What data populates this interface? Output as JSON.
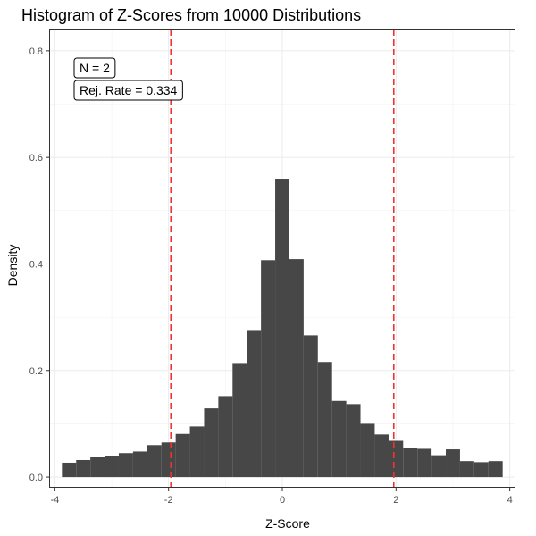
{
  "chart_data": {
    "type": "bar",
    "title": "Histogram of Z-Scores from 10000 Distributions",
    "xlabel": "Z-Score",
    "ylabel": "Density",
    "xlim": [
      -4.1,
      4.1
    ],
    "ylim": [
      -0.02,
      0.84
    ],
    "x_ticks": [
      -4,
      -2,
      0,
      2,
      4
    ],
    "x_tick_labels": [
      "-4",
      "-2",
      "0",
      "2",
      "4"
    ],
    "y_ticks": [
      0.0,
      0.2,
      0.4,
      0.6,
      0.8
    ],
    "y_tick_labels": [
      "0.0",
      "0.2",
      "0.4",
      "0.6",
      "0.8"
    ],
    "grid": true,
    "bin_width": 0.25,
    "bin_centers": [
      -3.75,
      -3.5,
      -3.25,
      -3.0,
      -2.75,
      -2.5,
      -2.25,
      -2.0,
      -1.75,
      -1.5,
      -1.25,
      -1.0,
      -0.75,
      -0.5,
      -0.25,
      0.0,
      0.25,
      0.5,
      0.75,
      1.0,
      1.25,
      1.5,
      1.75,
      2.0,
      2.25,
      2.5,
      2.75,
      3.0,
      3.25,
      3.5,
      3.75
    ],
    "values": [
      0.027,
      0.032,
      0.037,
      0.04,
      0.045,
      0.048,
      0.06,
      0.065,
      0.081,
      0.095,
      0.129,
      0.152,
      0.214,
      0.276,
      0.407,
      0.56,
      0.409,
      0.266,
      0.216,
      0.143,
      0.137,
      0.1,
      0.08,
      0.068,
      0.055,
      0.053,
      0.041,
      0.052,
      0.03,
      0.028,
      0.03
    ],
    "bar_color": "#474747",
    "reference_lines": {
      "x": [
        -1.96,
        1.96
      ],
      "color": "#ee3333",
      "style": "dashed"
    },
    "annotations": [
      "N = 2",
      "Rej. Rate = 0.334"
    ]
  }
}
